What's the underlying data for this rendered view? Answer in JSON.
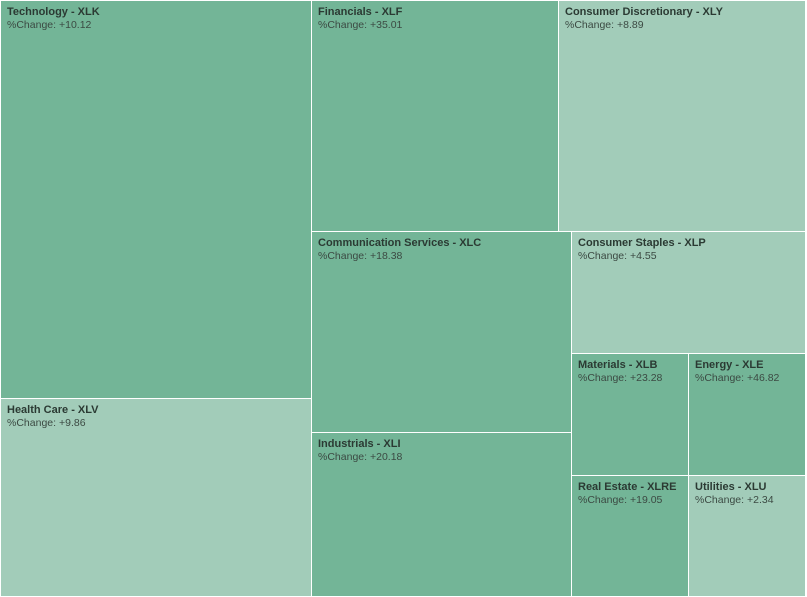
{
  "chart_data": {
    "type": "treemap",
    "value_label": "%Change:",
    "items": [
      {
        "label": "Technology - XLK",
        "change": "+10.12",
        "value": 10.12,
        "color": "#73b597"
      },
      {
        "label": "Health Care - XLV",
        "change": "+9.86",
        "value": 9.86,
        "color": "#a2ccb9"
      },
      {
        "label": "Financials - XLF",
        "change": "+35.01",
        "value": 35.01,
        "color": "#73b597"
      },
      {
        "label": "Consumer Discretionary - XLY",
        "change": "+8.89",
        "value": 8.89,
        "color": "#a2ccb9"
      },
      {
        "label": "Communication Services - XLC",
        "change": "+18.38",
        "value": 18.38,
        "color": "#73b597"
      },
      {
        "label": "Industrials - XLI",
        "change": "+20.18",
        "value": 20.18,
        "color": "#73b597"
      },
      {
        "label": "Consumer Staples - XLP",
        "change": "+4.55",
        "value": 4.55,
        "color": "#a2ccb9"
      },
      {
        "label": "Materials - XLB",
        "change": "+23.28",
        "value": 23.28,
        "color": "#73b597"
      },
      {
        "label": "Energy - XLE",
        "change": "+46.82",
        "value": 46.82,
        "color": "#73b597"
      },
      {
        "label": "Real Estate - XLRE",
        "change": "+19.05",
        "value": 19.05,
        "color": "#73b597"
      },
      {
        "label": "Utilities - XLU",
        "change": "+2.34",
        "value": 2.34,
        "color": "#a2ccb9"
      }
    ]
  }
}
